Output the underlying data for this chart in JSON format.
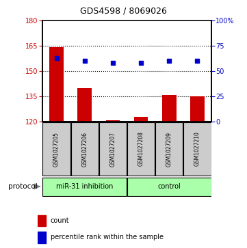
{
  "title": "GDS4598 / 8069026",
  "samples": [
    "GSM1027205",
    "GSM1027206",
    "GSM1027207",
    "GSM1027208",
    "GSM1027209",
    "GSM1027210"
  ],
  "counts": [
    164,
    140,
    121,
    123,
    136,
    135
  ],
  "percentile_ranks": [
    63,
    60,
    58,
    58,
    60,
    60
  ],
  "ylim_left": [
    120,
    180
  ],
  "yticks_left": [
    120,
    135,
    150,
    165,
    180
  ],
  "ylim_right": [
    0,
    100
  ],
  "yticks_right": [
    0,
    25,
    50,
    75,
    100
  ],
  "yticklabels_right": [
    "0",
    "25",
    "50",
    "75",
    "100%"
  ],
  "bar_color": "#cc0000",
  "dot_color": "#0000cc",
  "protocol_groups": [
    {
      "label": "miR-31 inhibition",
      "indices": [
        0,
        1,
        2
      ],
      "color": "#aaffaa"
    },
    {
      "label": "control",
      "indices": [
        3,
        4,
        5
      ],
      "color": "#aaffaa"
    }
  ],
  "protocol_label": "protocol",
  "legend_count_label": "count",
  "legend_pct_label": "percentile rank within the sample",
  "sample_box_color": "#cccccc",
  "bar_width": 0.5,
  "dot_size": 5,
  "gridlines_at": [
    135,
    150,
    165
  ]
}
